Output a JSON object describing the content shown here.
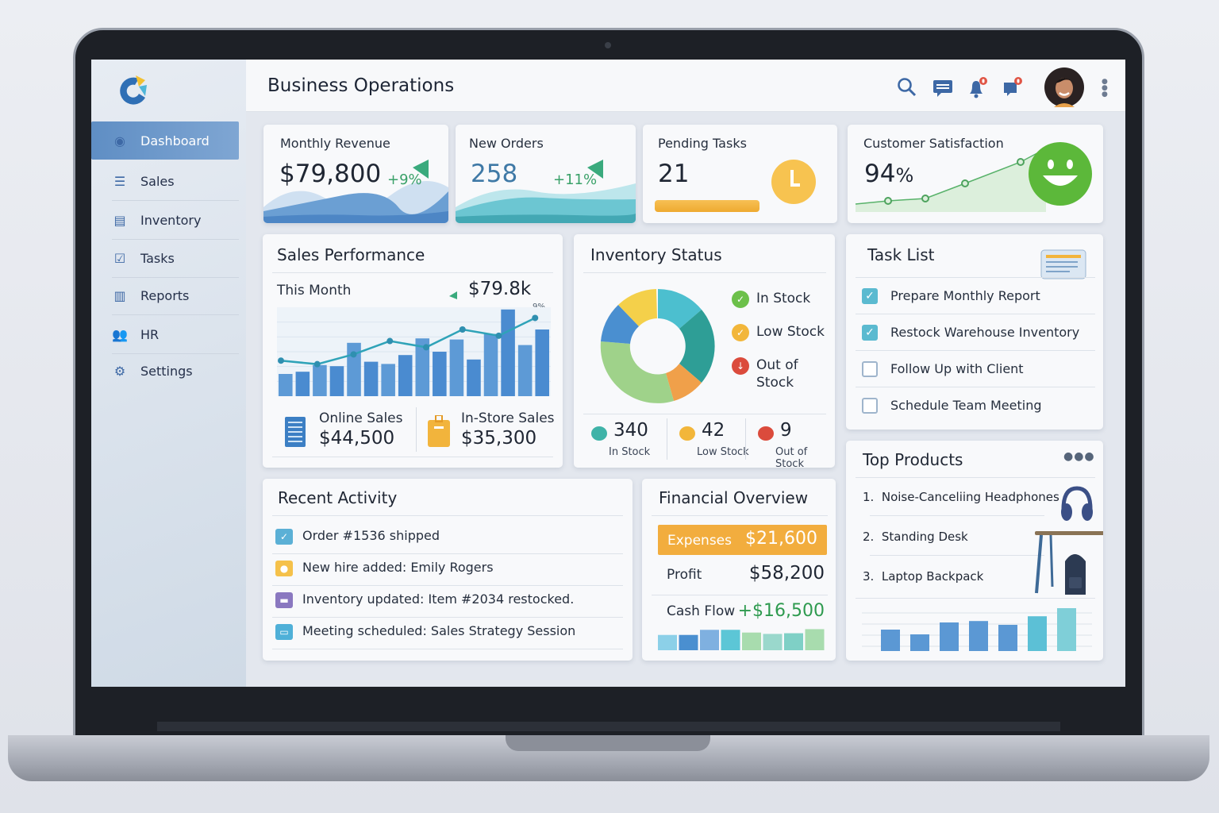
{
  "header": {
    "title": "Business Operations",
    "notification_badge": "0",
    "message_badge": "0"
  },
  "sidebar": {
    "items": [
      {
        "label": "Dashboard",
        "icon": "dashboard-icon",
        "active": true
      },
      {
        "label": "Sales",
        "icon": "list-icon"
      },
      {
        "label": "Inventory",
        "icon": "box-icon"
      },
      {
        "label": "Tasks",
        "icon": "task-icon"
      },
      {
        "label": "Reports",
        "icon": "bar-chart-icon"
      },
      {
        "label": "HR",
        "icon": "people-icon"
      },
      {
        "label": "Settings",
        "icon": "gear-icon"
      }
    ]
  },
  "kpis": {
    "revenue": {
      "label": "Monthly Revenue",
      "value": "$79,800",
      "change": "+9%"
    },
    "orders": {
      "label": "New Orders",
      "value": "258",
      "change": "+11%"
    },
    "tasks": {
      "label": "Pending Tasks",
      "value": "21"
    },
    "satisfaction": {
      "label": "Customer Satisfaction",
      "value": "94",
      "unit": "%"
    }
  },
  "sales_performance": {
    "title": "Sales Performance",
    "period": "This Month",
    "total": "$79.8k",
    "change": "9%",
    "bars": [
      20,
      22,
      28,
      27,
      48,
      31,
      29,
      37,
      52,
      40,
      51,
      33,
      56,
      78,
      46,
      60
    ],
    "line": [
      40,
      36,
      47,
      62,
      55,
      75,
      68,
      88
    ],
    "online": {
      "label": "Online Sales",
      "value": "$44,500"
    },
    "instore": {
      "label": "In-Store Sales",
      "value": "$35,300"
    }
  },
  "inventory": {
    "title": "Inventory Status",
    "legend": [
      {
        "label": "In Stock",
        "color": "#6cc04a"
      },
      {
        "label": "Low Stock",
        "color": "#f2b63a"
      },
      {
        "label": "Out of Stock",
        "color": "#db4b3c"
      }
    ],
    "stats": [
      {
        "value": "340",
        "label": "In Stock",
        "color": "#3fb3a8"
      },
      {
        "value": "42",
        "label": "Low Stock",
        "color": "#f2b63a"
      },
      {
        "value": "9",
        "label": "Out of Stock",
        "color": "#db4b3c"
      }
    ]
  },
  "task_list": {
    "title": "Task List",
    "items": [
      {
        "label": "Prepare Monthly Report",
        "done": true
      },
      {
        "label": "Restock Warehouse Inventory",
        "done": true
      },
      {
        "label": "Follow Up with Client",
        "done": false
      },
      {
        "label": "Schedule Team Meeting",
        "done": false
      }
    ]
  },
  "top_products": {
    "title": "Top Products",
    "items": [
      {
        "rank": "1.",
        "label": "Noise-Canceliing Headphones"
      },
      {
        "rank": "2.",
        "label": "Standing Desk"
      },
      {
        "rank": "3.",
        "label": "Laptop Backpack"
      }
    ],
    "bars": [
      45,
      35,
      60,
      63,
      55,
      73,
      90
    ]
  },
  "recent_activity": {
    "title": "Recent Activity",
    "items": [
      {
        "label": "Order #1536 shipped",
        "color": "#5bb0d6"
      },
      {
        "label": "New hire added: Emily Rogers",
        "color": "#f5c14a"
      },
      {
        "label": "Inventory updated: Item #2034 restocked.",
        "color": "#8a78c0"
      },
      {
        "label": "Meeting scheduled: Sales Strategy Session",
        "color": "#4fb0d8"
      }
    ]
  },
  "financial": {
    "title": "Financial Overview",
    "expenses": {
      "label": "Expenses",
      "value": "$21,600"
    },
    "profit": {
      "label": "Profit",
      "value": "$58,200"
    },
    "cashflow": {
      "label": "Cash Flow",
      "value": "+$16,500"
    },
    "bars": [
      45,
      45,
      60,
      60,
      52,
      48,
      50,
      62
    ]
  }
}
